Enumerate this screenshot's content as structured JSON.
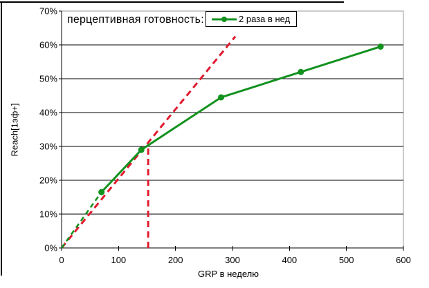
{
  "chart_data": {
    "type": "line",
    "title": "",
    "legend_title": "перцептивная готовность:",
    "xlabel": "GRP в неделю",
    "ylabel": "Reach[1эф+]",
    "xlim": [
      0,
      600
    ],
    "ylim": [
      0,
      70
    ],
    "x_ticks": [
      0,
      100,
      200,
      300,
      400,
      500,
      600
    ],
    "x_tick_labels": [
      "0",
      "100",
      "200",
      "300",
      "400",
      "500",
      "600"
    ],
    "y_ticks": [
      0,
      10,
      20,
      30,
      40,
      50,
      60,
      70
    ],
    "y_tick_labels": [
      "0%",
      "10%",
      "20%",
      "30%",
      "40%",
      "50%",
      "60%",
      "70%"
    ],
    "grid": "horizontal-major",
    "legend_position": "top-inside",
    "colors": {
      "series_green": "#12911e",
      "reference_red": "#e01a2e",
      "gridline": "#000000",
      "plot_border": "#999999",
      "text": "#000000",
      "background": "#ffffff"
    },
    "series": [
      {
        "name": "2 раза в нед",
        "color": "#12911e",
        "marker": "dot",
        "x": [
          0,
          70,
          140,
          280,
          420,
          560
        ],
        "y": [
          0,
          16.5,
          29,
          44.5,
          52,
          59.5
        ],
        "dashed_until_x": 70,
        "markers_from_index": 1
      }
    ],
    "reference_lines": [
      {
        "name": "linear-reference",
        "color": "#e01a2e",
        "style": "dashed",
        "x": [
          0,
          305
        ],
        "y": [
          0,
          62.5
        ]
      },
      {
        "name": "vertical-threshold",
        "color": "#e01a2e",
        "style": "dashed",
        "x": [
          152,
          152
        ],
        "y": [
          0,
          30.5
        ]
      }
    ]
  }
}
